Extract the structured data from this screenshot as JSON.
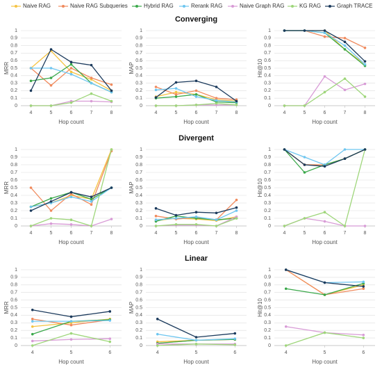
{
  "chart_data": [
    {
      "type": "line",
      "ylabel": "MRR",
      "xlabel": "Hop count",
      "x": [
        4,
        5,
        6,
        7,
        8
      ],
      "xlim": [
        3.5,
        8.5
      ],
      "xticks": [
        4,
        5,
        6,
        7,
        8
      ],
      "ylim": [
        0,
        1
      ],
      "yticks": [
        0,
        0.1,
        0.2,
        0.3,
        0.4,
        0.5,
        0.6,
        0.7,
        0.8,
        0.9,
        1
      ],
      "grid": true,
      "series": [
        {
          "name": "Naive RAG",
          "color": "#f5c342",
          "values": [
            0.5,
            0.73,
            0.45,
            0.35,
            0.2
          ]
        },
        {
          "name": "Naive RAG Subqueries",
          "color": "#f08a5d",
          "values": [
            0.5,
            0.27,
            0.5,
            0.37,
            0.28
          ]
        },
        {
          "name": "Hybrid RAG",
          "color": "#3aa84a",
          "values": [
            0.33,
            0.37,
            0.55,
            0.3,
            0.18
          ]
        },
        {
          "name": "Rerank RAG",
          "color": "#6ec6f0",
          "values": [
            0.5,
            0.5,
            0.42,
            0.3,
            0.18
          ]
        },
        {
          "name": "Naive Graph RAG",
          "color": "#d89bd6",
          "values": [
            0,
            0,
            0.06,
            0.06,
            0.05
          ]
        },
        {
          "name": "KG RAG",
          "color": "#9ed67a",
          "values": [
            0,
            0,
            0.04,
            0.16,
            0.06
          ]
        },
        {
          "name": "Graph TRACE",
          "color": "#1b3a5c",
          "values": [
            0.2,
            0.75,
            0.58,
            0.54,
            0.2
          ]
        }
      ]
    },
    {
      "type": "line",
      "title": "Converging",
      "ylabel": "MAP",
      "xlabel": "Hop count",
      "x": [
        4,
        5,
        6,
        7,
        8
      ],
      "xlim": [
        3.5,
        8.5
      ],
      "xticks": [
        4,
        5,
        6,
        7,
        8
      ],
      "ylim": [
        0,
        1
      ],
      "yticks": [
        0,
        0.1,
        0.2,
        0.3,
        0.4,
        0.5,
        0.6,
        0.7,
        0.8,
        0.9,
        1
      ],
      "grid": true,
      "series": [
        {
          "name": "Naive RAG",
          "color": "#f5c342",
          "values": [
            0.12,
            0.18,
            0.15,
            0.08,
            0.06
          ]
        },
        {
          "name": "Naive RAG Subqueries",
          "color": "#f08a5d",
          "values": [
            0.25,
            0.15,
            0.2,
            0.1,
            0.08
          ]
        },
        {
          "name": "Hybrid RAG",
          "color": "#3aa84a",
          "values": [
            0.1,
            0.12,
            0.15,
            0.05,
            0.04
          ]
        },
        {
          "name": "Rerank RAG",
          "color": "#6ec6f0",
          "values": [
            0.21,
            0.23,
            0.12,
            0.07,
            0.05
          ]
        },
        {
          "name": "Naive Graph RAG",
          "color": "#d89bd6",
          "values": [
            0,
            0,
            0.01,
            0.01,
            0.01
          ]
        },
        {
          "name": "KG RAG",
          "color": "#9ed67a",
          "values": [
            0,
            0,
            0.01,
            0.03,
            0.01
          ]
        },
        {
          "name": "Graph TRACE",
          "color": "#1b3a5c",
          "values": [
            0.11,
            0.31,
            0.33,
            0.25,
            0.06
          ]
        }
      ]
    },
    {
      "type": "line",
      "ylabel": "Hit@10",
      "xlabel": "Hop count",
      "x": [
        4,
        5,
        6,
        7,
        8
      ],
      "xlim": [
        3.5,
        8.5
      ],
      "xticks": [
        4,
        5,
        6,
        7,
        8
      ],
      "ylim": [
        0,
        1
      ],
      "yticks": [
        0,
        0.1,
        0.2,
        0.3,
        0.4,
        0.5,
        0.6,
        0.7,
        0.8,
        0.9,
        1
      ],
      "grid": true,
      "series": [
        {
          "name": "Naive RAG",
          "color": "#f5c342",
          "values": [
            1,
            1,
            1,
            0.75,
            0.55
          ]
        },
        {
          "name": "Naive RAG Subqueries",
          "color": "#f08a5d",
          "values": [
            1,
            1,
            0.92,
            0.9,
            0.77
          ]
        },
        {
          "name": "Hybrid RAG",
          "color": "#3aa84a",
          "values": [
            1,
            1,
            0.97,
            0.75,
            0.53
          ]
        },
        {
          "name": "Rerank RAG",
          "color": "#6ec6f0",
          "values": [
            1,
            1,
            0.97,
            0.8,
            0.55
          ]
        },
        {
          "name": "Naive Graph RAG",
          "color": "#d89bd6",
          "values": [
            0,
            0,
            0.39,
            0.21,
            0.29
          ]
        },
        {
          "name": "KG RAG",
          "color": "#9ed67a",
          "values": [
            0,
            0,
            0.18,
            0.36,
            0.12
          ]
        },
        {
          "name": "Graph TRACE",
          "color": "#1b3a5c",
          "values": [
            1,
            1,
            1,
            0.85,
            0.59
          ]
        }
      ]
    },
    {
      "type": "line",
      "ylabel": "MRR",
      "xlabel": "Hop count",
      "x": [
        4,
        5,
        6,
        7,
        8
      ],
      "xlim": [
        3.5,
        8.5
      ],
      "xticks": [
        4,
        5,
        6,
        7,
        8
      ],
      "ylim": [
        0,
        1
      ],
      "yticks": [
        0,
        0.1,
        0.2,
        0.3,
        0.4,
        0.5,
        0.6,
        0.7,
        0.8,
        0.9,
        1
      ],
      "grid": true,
      "series": [
        {
          "name": "Naive RAG",
          "color": "#f5c342",
          "values": [
            0.25,
            0.3,
            0.4,
            0.35,
            1
          ]
        },
        {
          "name": "Naive RAG Subqueries",
          "color": "#f08a5d",
          "values": [
            0.5,
            0.2,
            0.42,
            0.28,
            0.98
          ]
        },
        {
          "name": "Hybrid RAG",
          "color": "#3aa84a",
          "values": [
            0.25,
            0.36,
            0.44,
            0.35,
            0.5
          ]
        },
        {
          "name": "Rerank RAG",
          "color": "#6ec6f0",
          "values": [
            0.25,
            0.3,
            0.38,
            0.32,
            0.5
          ]
        },
        {
          "name": "Naive Graph RAG",
          "color": "#d89bd6",
          "values": [
            0,
            0.03,
            0.02,
            0,
            0.09
          ]
        },
        {
          "name": "KG RAG",
          "color": "#9ed67a",
          "values": [
            0,
            0.1,
            0.08,
            0,
            1
          ]
        },
        {
          "name": "Graph TRACE",
          "color": "#1b3a5c",
          "values": [
            0.2,
            0.32,
            0.44,
            0.38,
            0.5
          ]
        }
      ]
    },
    {
      "type": "line",
      "title": "Divergent",
      "ylabel": "MAP",
      "xlabel": "Hop count",
      "x": [
        4,
        5,
        6,
        7,
        8
      ],
      "xlim": [
        3.5,
        8.5
      ],
      "xticks": [
        4,
        5,
        6,
        7,
        8
      ],
      "ylim": [
        0,
        1
      ],
      "yticks": [
        0,
        0.1,
        0.2,
        0.3,
        0.4,
        0.5,
        0.6,
        0.7,
        0.8,
        0.9,
        1
      ],
      "grid": true,
      "series": [
        {
          "name": "Naive RAG",
          "color": "#f5c342",
          "values": [
            0.07,
            0.1,
            0.09,
            0.07,
            0.12
          ]
        },
        {
          "name": "Naive RAG Subqueries",
          "color": "#f08a5d",
          "values": [
            0.13,
            0.09,
            0.11,
            0.08,
            0.34
          ]
        },
        {
          "name": "Hybrid RAG",
          "color": "#3aa84a",
          "values": [
            0.06,
            0.13,
            0.1,
            0.08,
            0.1
          ]
        },
        {
          "name": "Rerank RAG",
          "color": "#6ec6f0",
          "values": [
            0.08,
            0.1,
            0.12,
            0.08,
            0.2
          ]
        },
        {
          "name": "Naive Graph RAG",
          "color": "#d89bd6",
          "values": [
            0,
            0.01,
            0.01,
            0,
            0.12
          ]
        },
        {
          "name": "KG RAG",
          "color": "#9ed67a",
          "values": [
            0,
            0.02,
            0.02,
            0,
            0.1
          ]
        },
        {
          "name": "Graph TRACE",
          "color": "#1b3a5c",
          "values": [
            0.23,
            0.14,
            0.18,
            0.17,
            0.24
          ]
        }
      ]
    },
    {
      "type": "line",
      "ylabel": "Hit@10",
      "xlabel": "Hop count",
      "x": [
        4,
        5,
        6,
        7,
        8
      ],
      "xlim": [
        3.5,
        8.5
      ],
      "xticks": [
        4,
        5,
        6,
        7,
        8
      ],
      "ylim": [
        0,
        1
      ],
      "yticks": [
        0,
        0.1,
        0.2,
        0.3,
        0.4,
        0.5,
        0.6,
        0.7,
        0.8,
        0.9,
        1
      ],
      "grid": true,
      "series": [
        {
          "name": "Naive RAG",
          "color": "#f5c342",
          "values": [
            1,
            0.8,
            0.8,
            0.88,
            1
          ]
        },
        {
          "name": "Naive RAG Subqueries",
          "color": "#f08a5d",
          "values": [
            1,
            0.8,
            0.8,
            0.88,
            1
          ]
        },
        {
          "name": "Hybrid RAG",
          "color": "#3aa84a",
          "values": [
            1,
            0.7,
            0.8,
            0.88,
            1
          ]
        },
        {
          "name": "Rerank RAG",
          "color": "#6ec6f0",
          "values": [
            1,
            0.9,
            0.8,
            1,
            1
          ]
        },
        {
          "name": "Naive Graph RAG",
          "color": "#d89bd6",
          "values": [
            0,
            0.1,
            0.06,
            0,
            0
          ]
        },
        {
          "name": "KG RAG",
          "color": "#9ed67a",
          "values": [
            0,
            0.1,
            0.18,
            0,
            1
          ]
        },
        {
          "name": "Graph TRACE",
          "color": "#1b3a5c",
          "values": [
            1,
            0.8,
            0.78,
            0.88,
            1
          ]
        }
      ]
    },
    {
      "type": "line",
      "ylabel": "MRR",
      "xlabel": "Hop count",
      "x": [
        4,
        5,
        6
      ],
      "xlim": [
        3.7,
        6.3
      ],
      "xticks": [
        4,
        5,
        6
      ],
      "ylim": [
        0,
        1
      ],
      "yticks": [
        0,
        0.1,
        0.2,
        0.3,
        0.4,
        0.5,
        0.6,
        0.7,
        0.8,
        0.9,
        1
      ],
      "grid": true,
      "series": [
        {
          "name": "Naive RAG",
          "color": "#f5c342",
          "values": [
            0.25,
            0.3,
            0.35
          ]
        },
        {
          "name": "Naive RAG Subqueries",
          "color": "#f08a5d",
          "values": [
            0.35,
            0.27,
            0.34
          ]
        },
        {
          "name": "Hybrid RAG",
          "color": "#3aa84a",
          "values": [
            0.15,
            0.32,
            0.34
          ]
        },
        {
          "name": "Rerank RAG",
          "color": "#6ec6f0",
          "values": [
            0.32,
            0.32,
            0.33
          ]
        },
        {
          "name": "Naive Graph RAG",
          "color": "#d89bd6",
          "values": [
            0.06,
            0.08,
            0.09
          ]
        },
        {
          "name": "KG RAG",
          "color": "#9ed67a",
          "values": [
            0,
            0.16,
            0.05
          ]
        },
        {
          "name": "Graph TRACE",
          "color": "#1b3a5c",
          "values": [
            0.47,
            0.38,
            0.45
          ]
        }
      ]
    },
    {
      "type": "line",
      "title": "Linear",
      "ylabel": "MAP",
      "xlabel": "Hop count",
      "x": [
        4,
        5,
        6
      ],
      "xlim": [
        3.7,
        6.3
      ],
      "xticks": [
        4,
        5,
        6
      ],
      "ylim": [
        0,
        1
      ],
      "yticks": [
        0,
        0.1,
        0.2,
        0.3,
        0.4,
        0.5,
        0.6,
        0.7,
        0.8,
        0.9,
        1
      ],
      "grid": true,
      "series": [
        {
          "name": "Naive RAG",
          "color": "#f5c342",
          "values": [
            0.05,
            0.07,
            0.08
          ]
        },
        {
          "name": "Naive RAG Subqueries",
          "color": "#f08a5d",
          "values": [
            0.03,
            0.07,
            0.08
          ]
        },
        {
          "name": "Hybrid RAG",
          "color": "#3aa84a",
          "values": [
            0.03,
            0.07,
            0.08
          ]
        },
        {
          "name": "Rerank RAG",
          "color": "#6ec6f0",
          "values": [
            0.15,
            0.07,
            0.09
          ]
        },
        {
          "name": "Naive Graph RAG",
          "color": "#d89bd6",
          "values": [
            0.02,
            0.02,
            0.02
          ]
        },
        {
          "name": "KG RAG",
          "color": "#9ed67a",
          "values": [
            0,
            0.02,
            0.01
          ]
        },
        {
          "name": "Graph TRACE",
          "color": "#1b3a5c",
          "values": [
            0.35,
            0.11,
            0.16
          ]
        }
      ]
    },
    {
      "type": "line",
      "ylabel": "Hit@10",
      "xlabel": "Hop count",
      "x": [
        4,
        5,
        6
      ],
      "xlim": [
        3.7,
        6.3
      ],
      "xticks": [
        4,
        5,
        6
      ],
      "ylim": [
        0,
        1
      ],
      "yticks": [
        0,
        0.1,
        0.2,
        0.3,
        0.4,
        0.5,
        0.6,
        0.7,
        0.8,
        0.9,
        1
      ],
      "grid": true,
      "series": [
        {
          "name": "Naive RAG",
          "color": "#f5c342",
          "values": [
            1,
            0.67,
            0.8
          ]
        },
        {
          "name": "Naive RAG Subqueries",
          "color": "#f08a5d",
          "values": [
            1,
            0.67,
            0.75
          ]
        },
        {
          "name": "Hybrid RAG",
          "color": "#3aa84a",
          "values": [
            0.75,
            0.67,
            0.82
          ]
        },
        {
          "name": "Rerank RAG",
          "color": "#6ec6f0",
          "values": [
            1,
            0.83,
            0.84
          ]
        },
        {
          "name": "Naive Graph RAG",
          "color": "#d89bd6",
          "values": [
            0.25,
            0.17,
            0.14
          ]
        },
        {
          "name": "KG RAG",
          "color": "#9ed67a",
          "values": [
            0,
            0.17,
            0.1
          ]
        },
        {
          "name": "Graph TRACE",
          "color": "#1b3a5c",
          "values": [
            1,
            0.83,
            0.78
          ]
        }
      ]
    }
  ]
}
